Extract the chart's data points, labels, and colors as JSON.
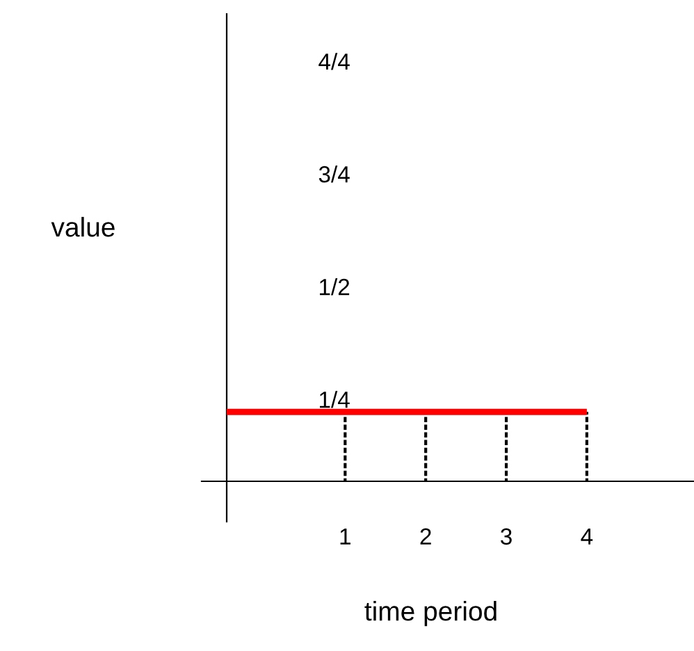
{
  "chart_data": {
    "type": "line",
    "xlabel": "time period",
    "ylabel": "value",
    "xlim": [
      -0.47,
      5.33
    ],
    "ylim": [
      0.068,
      1.105
    ],
    "xticks": [
      1,
      2,
      3,
      4
    ],
    "yticks": [
      {
        "value": 0.25,
        "label": "1/4"
      },
      {
        "value": 0.5,
        "label": "1/2"
      },
      {
        "value": 0.75,
        "label": "3/4"
      },
      {
        "value": 1.0,
        "label": "4/4"
      }
    ],
    "grid": false,
    "legend": false,
    "series": [
      {
        "color": "#ff0000",
        "x": [
          -0.47,
          4
        ],
        "values": [
          0.222,
          0.222
        ],
        "line_style": "solid"
      },
      {
        "type": "bar",
        "color": "#000000",
        "x": [
          1,
          2,
          3,
          4
        ],
        "base": [
          0.068,
          0.068,
          0.068,
          0.068
        ],
        "values": [
          0.154,
          0.154,
          0.154,
          0.154
        ],
        "line_style": "dotted"
      }
    ]
  }
}
